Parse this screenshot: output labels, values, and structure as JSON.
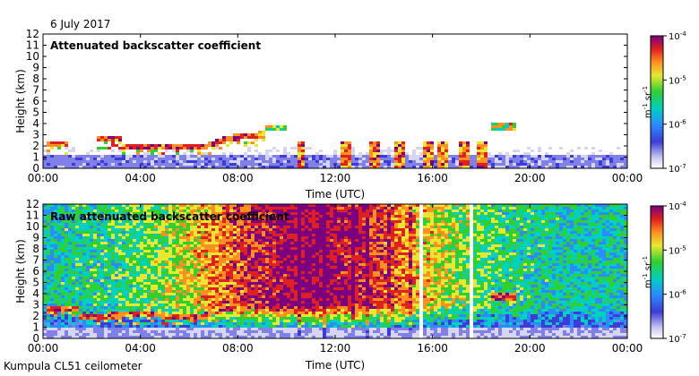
{
  "figure": {
    "date": "6 July 2017",
    "station": "Kumpula CL51 ceilometer"
  },
  "colorbar": {
    "ticks": [
      "10",
      "10",
      "10",
      "10"
    ],
    "exponents": [
      "-4",
      "-5",
      "-6",
      "-7"
    ],
    "unit_m": "m",
    "unit_m_exp": "-1",
    "unit_sr": "sr",
    "unit_sr_exp": "-1"
  },
  "chart_data": [
    {
      "type": "heatmap",
      "title": "Attenuated backscatter coefficient",
      "xlabel": "Time (UTC)",
      "ylabel": "Height (km)",
      "xticks": [
        "00:00",
        "04:00",
        "08:00",
        "12:00",
        "16:00",
        "20:00",
        "00:00"
      ],
      "yticks": [
        "0",
        "1",
        "2",
        "3",
        "4",
        "5",
        "6",
        "7",
        "8",
        "9",
        "10",
        "11",
        "12"
      ],
      "xlim_hours": [
        0,
        24
      ],
      "ylim_km": [
        0,
        12
      ],
      "color_scale": "log10",
      "clim": [
        1e-07,
        0.0001
      ],
      "features": [
        {
          "name": "boundary layer",
          "t_start": 0,
          "t_end": 24,
          "height_km": [
            0,
            1.1
          ],
          "level": "1e-7 to 1e-6"
        },
        {
          "name": "aerosol layer 1",
          "t_start": 0.1,
          "t_end": 1.0,
          "height_km": 2.2
        },
        {
          "name": "aerosol layer 2",
          "t_start": 2.2,
          "t_end": 9.1,
          "height_km": [
            1.6,
            3.0
          ]
        },
        {
          "name": "cloud",
          "t_start": 9.1,
          "t_end": 10.0,
          "height_km": 3.6
        },
        {
          "name": "cloud",
          "t_start": 18.4,
          "t_end": 19.4,
          "height_km": 3.8
        },
        {
          "name": "rain shafts",
          "t_start": 10.5,
          "t_end": 18.2,
          "height_km": [
            0,
            2.5
          ]
        }
      ]
    },
    {
      "type": "heatmap",
      "title": "Raw attenuated backscatter coefficient",
      "xlabel": "Time (UTC)",
      "ylabel": "Height (km)",
      "xticks": [
        "00:00",
        "04:00",
        "08:00",
        "12:00",
        "16:00",
        "20:00",
        "00:00"
      ],
      "yticks": [
        "0",
        "1",
        "2",
        "3",
        "4",
        "5",
        "6",
        "7",
        "8",
        "9",
        "10",
        "11",
        "12"
      ],
      "xlim_hours": [
        0,
        24
      ],
      "ylim_km": [
        0,
        12
      ],
      "color_scale": "log10",
      "clim": [
        1e-07,
        0.0001
      ],
      "features": [
        {
          "name": "noisy background",
          "t_start": 0,
          "t_end": 24,
          "height_km": [
            0,
            12
          ],
          "level": "1e-6 to 1e-4 (peak 09:00-13:00)"
        },
        {
          "name": "aerosol layer",
          "t_start": 0.1,
          "t_end": 9.1,
          "height_km": [
            1.6,
            3.0
          ]
        },
        {
          "name": "cloud",
          "t_start": 18.4,
          "t_end": 19.4,
          "height_km": 3.8
        },
        {
          "name": "vertical streaks",
          "t_start": 10.5,
          "t_end": 18.2,
          "height_km": [
            0,
            12
          ]
        }
      ]
    }
  ]
}
